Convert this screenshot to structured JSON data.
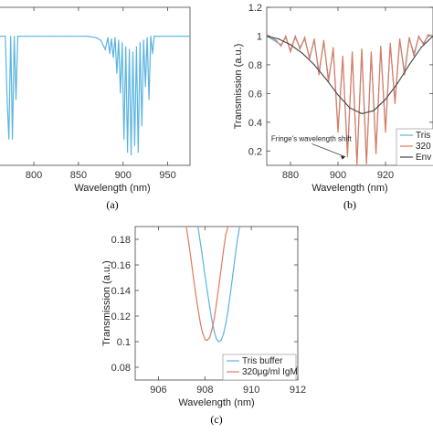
{
  "chart_data": [
    {
      "panel": "(a)",
      "type": "line",
      "xlabel": "Wavelength (nm)",
      "ylabel": "",
      "xlim": [
        760,
        975
      ],
      "ylim": [
        0,
        1.2
      ],
      "x_ticks": [
        800,
        850,
        900,
        950
      ],
      "grid": false,
      "series": [
        {
          "color": "#5ab4e0",
          "x": [
            760,
            765,
            768,
            770,
            772,
            774,
            776,
            778,
            780,
            782,
            785,
            790,
            800,
            820,
            840,
            860,
            870,
            875,
            880,
            883,
            885,
            887,
            889,
            891,
            893,
            895,
            897,
            899,
            901,
            903,
            905,
            907,
            909,
            911,
            913,
            915,
            917,
            919,
            921,
            923,
            925,
            927,
            929,
            931,
            933,
            935,
            940,
            950,
            960,
            970,
            975
          ],
          "y": [
            0.98,
            0.98,
            0.98,
            0.5,
            0.2,
            0.98,
            0.2,
            0.98,
            0.5,
            0.98,
            0.98,
            0.98,
            0.98,
            0.98,
            0.98,
            0.98,
            0.97,
            0.95,
            0.88,
            0.97,
            0.85,
            0.96,
            0.82,
            0.97,
            0.7,
            0.95,
            0.55,
            0.93,
            0.2,
            0.9,
            0.1,
            0.88,
            0.08,
            0.86,
            0.15,
            0.9,
            0.1,
            0.93,
            0.3,
            0.95,
            0.6,
            0.97,
            0.5,
            0.98,
            0.85,
            0.98,
            0.98,
            0.98,
            0.98,
            0.98,
            0.98
          ]
        }
      ]
    },
    {
      "panel": "(b)",
      "type": "line",
      "xlabel": "Wavelength (nm)",
      "ylabel": "Transmission (a.u.)",
      "xlim": [
        870,
        940
      ],
      "ylim": [
        0.1,
        1.2
      ],
      "x_ticks": [
        880,
        900,
        920
      ],
      "y_ticks": [
        0.2,
        0.4,
        0.6,
        0.8,
        1,
        1.2
      ],
      "grid": false,
      "legend": [
        "Tris",
        "320",
        "Env"
      ],
      "legend_position": "bottom-right",
      "annotation": "Fringe's wavelength shift",
      "series": [
        {
          "name": "Tris",
          "color": "#5ab4e0",
          "x": [
            870,
            872,
            874,
            876,
            878,
            880,
            882,
            884,
            886,
            888,
            890,
            892,
            894,
            896,
            898,
            900,
            902,
            904,
            906,
            908,
            910,
            912,
            914,
            916,
            918,
            920,
            922,
            924,
            926,
            928,
            930,
            932,
            934,
            936,
            938,
            940
          ],
          "y": [
            1.0,
            0.98,
            0.96,
            0.94,
            0.99,
            0.9,
            0.99,
            0.92,
            0.98,
            0.85,
            0.97,
            0.75,
            0.96,
            0.7,
            0.9,
            0.35,
            0.85,
            0.18,
            0.88,
            0.12,
            0.9,
            0.12,
            0.88,
            0.2,
            0.92,
            0.35,
            0.94,
            0.55,
            0.97,
            0.75,
            0.98,
            0.88,
            0.99,
            0.95,
            1.0,
            1.0
          ]
        },
        {
          "name": "320",
          "color": "#e07a5f",
          "x": [
            870,
            872,
            874,
            876,
            878,
            880,
            882,
            884,
            886,
            888,
            890,
            892,
            894,
            896,
            898,
            900,
            902,
            904,
            906,
            908,
            910,
            912,
            914,
            916,
            918,
            920,
            922,
            924,
            926,
            928,
            930,
            932,
            934,
            936,
            938,
            940
          ],
          "y": [
            1.01,
            0.99,
            0.97,
            0.93,
            1.0,
            0.89,
            1.0,
            0.91,
            0.99,
            0.84,
            0.98,
            0.73,
            0.97,
            0.68,
            0.92,
            0.33,
            0.86,
            0.16,
            0.89,
            0.1,
            0.91,
            0.11,
            0.89,
            0.18,
            0.93,
            0.33,
            0.95,
            0.53,
            0.98,
            0.73,
            0.99,
            0.86,
            1.0,
            0.94,
            1.01,
            1.0
          ]
        },
        {
          "name": "Env",
          "color": "#444444",
          "x": [
            870,
            875,
            880,
            885,
            890,
            895,
            900,
            905,
            910,
            915,
            920,
            925,
            930,
            935,
            940
          ],
          "y": [
            1.0,
            0.98,
            0.94,
            0.88,
            0.8,
            0.7,
            0.59,
            0.5,
            0.46,
            0.48,
            0.56,
            0.67,
            0.8,
            0.92,
            1.0
          ]
        }
      ]
    },
    {
      "panel": "(c)",
      "type": "line",
      "xlabel": "Wavelength (nm)",
      "ylabel": "Transmission (a.u.)",
      "xlim": [
        905,
        912
      ],
      "ylim": [
        0.07,
        0.19
      ],
      "x_ticks": [
        906,
        908,
        910,
        912
      ],
      "y_ticks": [
        0.08,
        0.1,
        0.12,
        0.14,
        0.16,
        0.18
      ],
      "grid": false,
      "legend": [
        "Tris buffer",
        "320μg/ml IgM"
      ],
      "legend_position": "bottom-right",
      "series": [
        {
          "name": "Tris buffer",
          "color": "#5ab4e0",
          "x": [
            907.7,
            907.8,
            907.9,
            908.0,
            908.1,
            908.2,
            908.3,
            908.4,
            908.5,
            908.6,
            908.7,
            908.8,
            908.9,
            909.0,
            909.1,
            909.2,
            909.3,
            909.4,
            909.5
          ],
          "y": [
            0.19,
            0.178,
            0.166,
            0.152,
            0.14,
            0.128,
            0.117,
            0.108,
            0.102,
            0.1,
            0.101,
            0.106,
            0.114,
            0.125,
            0.138,
            0.152,
            0.166,
            0.18,
            0.19
          ]
        },
        {
          "name": "320μg/ml IgM",
          "color": "#e07a5f",
          "x": [
            907.2,
            907.3,
            907.4,
            907.5,
            907.6,
            907.7,
            907.8,
            907.9,
            908.0,
            908.1,
            908.2,
            908.3,
            908.4,
            908.5,
            908.6,
            908.7,
            908.8,
            908.9,
            909.0
          ],
          "y": [
            0.19,
            0.178,
            0.165,
            0.151,
            0.138,
            0.126,
            0.115,
            0.107,
            0.102,
            0.101,
            0.103,
            0.109,
            0.118,
            0.13,
            0.143,
            0.157,
            0.171,
            0.184,
            0.19
          ]
        }
      ]
    }
  ]
}
